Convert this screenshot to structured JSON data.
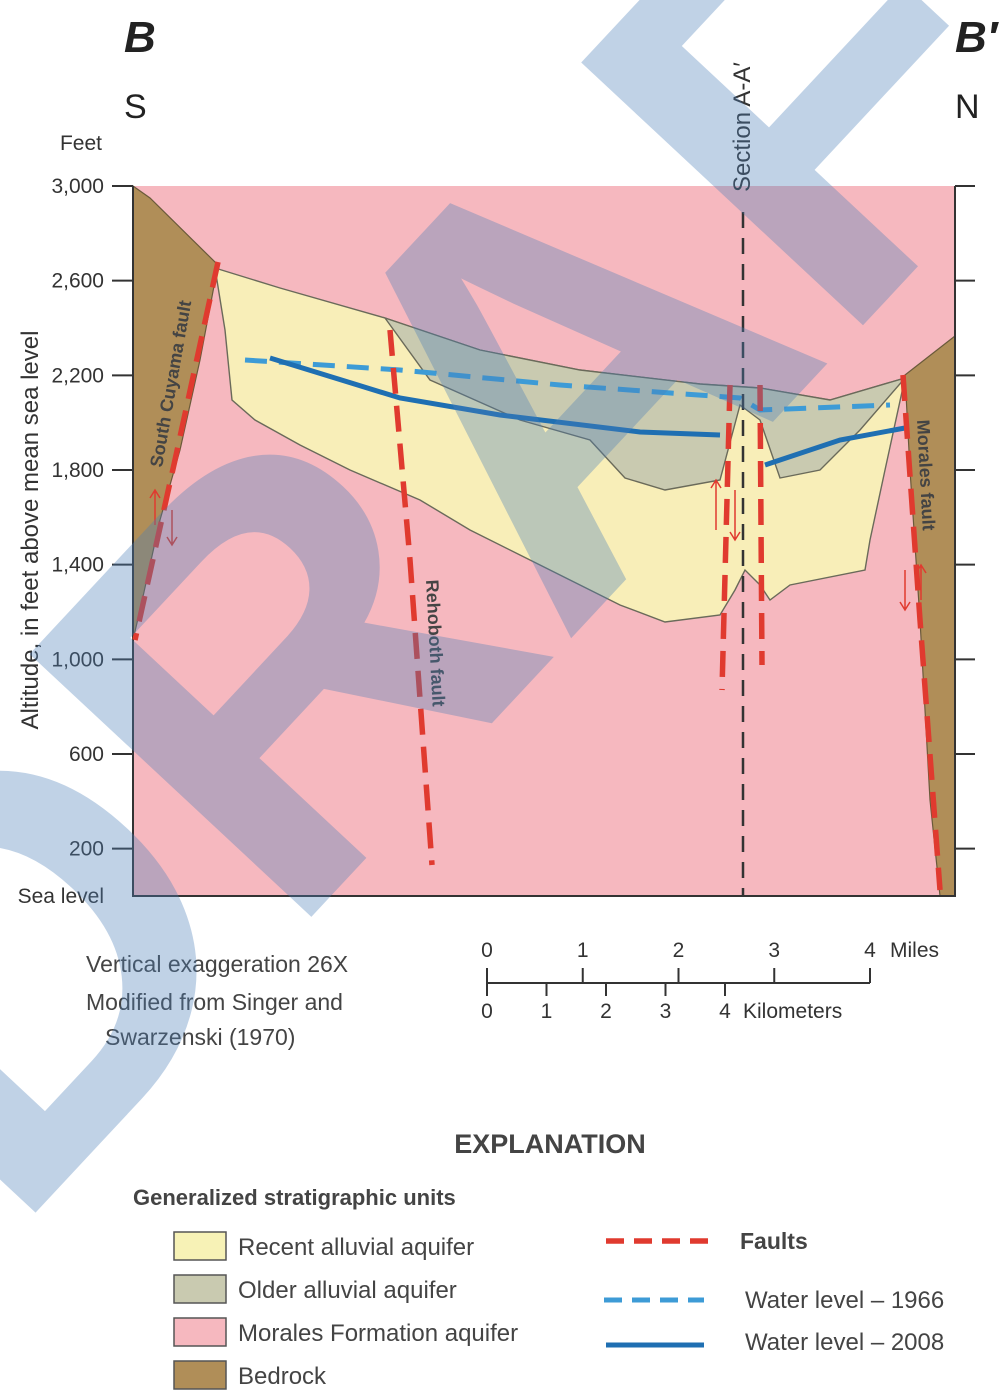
{
  "section": {
    "left_letter": "B",
    "right_letter": "B′",
    "left_direction": "S",
    "right_direction": "N",
    "crossing_section_label": "Section A-A′"
  },
  "axis": {
    "units_label": "Feet",
    "ylabel": "Altitude, in feet above mean sea level",
    "ticks": [
      {
        "value": 3000,
        "label": "3,000"
      },
      {
        "value": 2600,
        "label": "2,600"
      },
      {
        "value": 2200,
        "label": "2,200"
      },
      {
        "value": 1800,
        "label": "1,800"
      },
      {
        "value": 1400,
        "label": "1,400"
      },
      {
        "value": 1000,
        "label": "1,000"
      },
      {
        "value": 600,
        "label": "600"
      },
      {
        "value": 200,
        "label": "200"
      }
    ],
    "baseline_label": "Sea level"
  },
  "faults": {
    "south_cuyama": "South Cuyama fault",
    "rehoboth": "Rehoboth fault",
    "morales": "Morales fault"
  },
  "notes": {
    "exaggeration": "Vertical exaggeration 26X",
    "source_line1": "Modified from Singer and",
    "source_line2": "Swarzenski (1970)"
  },
  "scale_bar": {
    "miles_ticks": [
      "0",
      "1",
      "2",
      "3",
      "4"
    ],
    "miles_unit": "Miles",
    "km_ticks": [
      "0",
      "1",
      "2",
      "3",
      "4"
    ],
    "km_unit": "Kilometers"
  },
  "explanation": {
    "title": "EXPLANATION",
    "strat_title": "Generalized stratigraphic units",
    "units": [
      {
        "label": "Recent alluvial aquifer",
        "color": "#f7f2b6"
      },
      {
        "label": "Older alluvial aquifer",
        "color": "#c9cab0"
      },
      {
        "label": "Morales Formation aquifer",
        "color": "#f6b8bf"
      },
      {
        "label": "Bedrock",
        "color": "#b08e58"
      }
    ],
    "lines": [
      {
        "label": "Faults",
        "color": "#e03a2f"
      },
      {
        "label": "Water level – 1966",
        "color": "#3d9bd6"
      },
      {
        "label": "Water level – 2008",
        "color": "#1f6fb2"
      }
    ]
  },
  "watermark": "DRAFT"
}
